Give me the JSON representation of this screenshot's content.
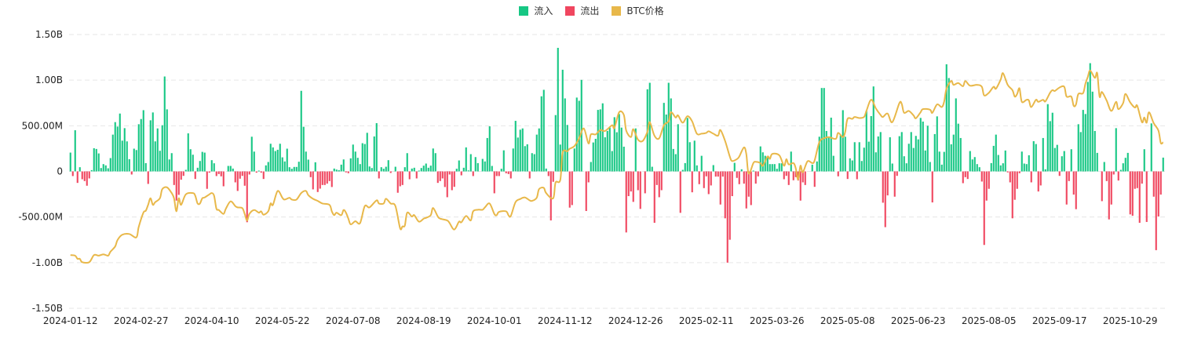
{
  "chart_data": {
    "type": "bar",
    "title": "",
    "xlabel": "",
    "ylabel": "",
    "legend_position": "top-center",
    "grid": true,
    "legend": [
      {
        "name": "流入",
        "color": "#16c784"
      },
      {
        "name": "流出",
        "color": "#f0465f"
      },
      {
        "name": "BTC价格",
        "color": "#e8b84a"
      }
    ],
    "y_axis": {
      "min": -1500,
      "max": 1500,
      "unit": "USD millions",
      "ticks": [
        1500,
        1000,
        500,
        0,
        -500,
        -1000,
        -1500
      ],
      "tick_labels": [
        "1.50B",
        "1.00B",
        "500.00M",
        "0",
        "-500.00M",
        "-1.00B",
        "-1.50B"
      ]
    },
    "price_axis": {
      "min": 24600,
      "max": 137100,
      "unit": "USD",
      "visible": false
    },
    "x_axis": {
      "tick_index": [
        0,
        30,
        60,
        90,
        120,
        150,
        180,
        210,
        240,
        270,
        300,
        330,
        360,
        390,
        420,
        450
      ],
      "tick_labels": [
        "2024-01-12",
        "2024-02-27",
        "2024-04-10",
        "2024-05-22",
        "2024-07-08",
        "2024-08-19",
        "2024-10-01",
        "2024-11-12",
        "2024-12-26",
        "2025-02-11",
        "2025-03-26",
        "2025-05-08",
        "2025-06-23",
        "2025-08-05",
        "2025-09-17",
        "2025-10-29"
      ]
    },
    "flows_musd": [
      206,
      -51,
      451,
      -126,
      46,
      -86,
      -106,
      -157,
      -77,
      14,
      254,
      246,
      197,
      37,
      80,
      66,
      34,
      146,
      403,
      540,
      491,
      634,
      337,
      474,
      329,
      134,
      -34,
      249,
      234,
      517,
      574,
      671,
      91,
      -137,
      560,
      646,
      329,
      471,
      226,
      506,
      1040,
      680,
      131,
      200,
      -149,
      -320,
      -257,
      -91,
      -49,
      17,
      417,
      243,
      183,
      -83,
      40,
      114,
      214,
      206,
      -191,
      -14,
      123,
      89,
      -51,
      -29,
      -54,
      -163,
      0,
      60,
      60,
      31,
      -120,
      -214,
      -80,
      -49,
      -157,
      -557,
      -34,
      380,
      217,
      -14,
      9,
      -14,
      -83,
      66,
      103,
      303,
      263,
      223,
      237,
      303,
      154,
      109,
      249,
      46,
      29,
      49,
      49,
      106,
      883,
      489,
      217,
      129,
      -63,
      -197,
      100,
      -226,
      -189,
      -149,
      -149,
      -134,
      -106,
      -171,
      31,
      20,
      14,
      74,
      131,
      -11,
      -20,
      143,
      294,
      217,
      149,
      80,
      309,
      300,
      423,
      54,
      37,
      383,
      529,
      -77,
      46,
      29,
      51,
      123,
      -17,
      0,
      51,
      -234,
      -163,
      -149,
      46,
      200,
      -86,
      31,
      40,
      -77,
      9,
      37,
      63,
      86,
      40,
      63,
      251,
      200,
      -126,
      -106,
      -77,
      -171,
      -283,
      -34,
      -206,
      -169,
      29,
      120,
      -43,
      40,
      263,
      11,
      189,
      -51,
      157,
      91,
      0,
      137,
      109,
      366,
      494,
      60,
      -240,
      -51,
      -51,
      29,
      231,
      -20,
      -29,
      -77,
      251,
      554,
      371,
      457,
      471,
      277,
      297,
      -77,
      200,
      189,
      403,
      471,
      823,
      894,
      31,
      -51,
      -537,
      -114,
      617,
      1354,
      294,
      1114,
      800,
      509,
      -397,
      -369,
      251,
      809,
      774,
      1003,
      0,
      -434,
      -120,
      103,
      317,
      357,
      674,
      680,
      746,
      374,
      443,
      480,
      223,
      594,
      429,
      629,
      480,
      271,
      -669,
      -271,
      -220,
      -334,
      471,
      -206,
      -411,
      0,
      -240,
      900,
      971,
      51,
      -563,
      -149,
      -283,
      -206,
      751,
      623,
      971,
      800,
      246,
      189,
      517,
      -454,
      17,
      91,
      586,
      320,
      -229,
      337,
      66,
      -140,
      171,
      -183,
      -54,
      -249,
      -154,
      69,
      -57,
      -57,
      -363,
      -57,
      -514,
      -1000,
      -749,
      -271,
      94,
      -71,
      -140,
      23,
      -134,
      -406,
      -277,
      -369,
      9,
      -134,
      -54,
      274,
      209,
      171,
      166,
      80,
      80,
      80,
      29,
      89,
      89,
      -86,
      -49,
      -149,
      217,
      -97,
      -63,
      -100,
      -320,
      -120,
      -149,
      0,
      0,
      74,
      -169,
      109,
      380,
      914,
      914,
      443,
      380,
      589,
      171,
      0,
      -54,
      394,
      671,
      380,
      -83,
      143,
      120,
      320,
      -86,
      320,
      114,
      260,
      666,
      326,
      606,
      931,
      209,
      383,
      431,
      -343,
      -611,
      -263,
      374,
      86,
      -277,
      -49,
      386,
      431,
      166,
      89,
      303,
      431,
      257,
      389,
      351,
      586,
      546,
      229,
      500,
      103,
      -340,
      409,
      603,
      217,
      74,
      214,
      1174,
      1023,
      297,
      403,
      800,
      523,
      366,
      -129,
      -63,
      -83,
      223,
      131,
      157,
      80,
      46,
      -111,
      -806,
      -320,
      -191,
      91,
      280,
      403,
      180,
      66,
      89,
      229,
      -11,
      -120,
      -514,
      -311,
      -191,
      -20,
      217,
      86,
      80,
      177,
      -120,
      331,
      300,
      -220,
      -154,
      366,
      23,
      737,
      551,
      643,
      257,
      291,
      -49,
      166,
      223,
      -363,
      -106,
      243,
      -254,
      -414,
      517,
      431,
      674,
      629,
      980,
      1186,
      874,
      443,
      203,
      0,
      -326,
      103,
      -106,
      -526,
      -363,
      -34,
      474,
      -100,
      17,
      89,
      149,
      203,
      -471,
      -486,
      -191,
      -183,
      -563,
      -134,
      243,
      -554,
      0,
      526,
      -277,
      -863,
      -494,
      -254,
      151
    ],
    "btc_price_usd": [
      [
        0,
        46460
      ],
      [
        2,
        46240
      ],
      [
        3,
        44950
      ],
      [
        4,
        44950
      ],
      [
        5,
        43570
      ],
      [
        8,
        43570
      ],
      [
        10,
        46460
      ],
      [
        12,
        46240
      ],
      [
        14,
        46780
      ],
      [
        16,
        46240
      ],
      [
        17,
        47850
      ],
      [
        19,
        50000
      ],
      [
        20,
        52660
      ],
      [
        22,
        54810
      ],
      [
        25,
        55130
      ],
      [
        28,
        53740
      ],
      [
        29,
        58030
      ],
      [
        31,
        63920
      ],
      [
        32,
        64680
      ],
      [
        33,
        67130
      ],
      [
        34,
        69810
      ],
      [
        35,
        67130
      ],
      [
        36,
        68200
      ],
      [
        38,
        69810
      ],
      [
        39,
        73550
      ],
      [
        41,
        74300
      ],
      [
        43,
        71940
      ],
      [
        44,
        69810
      ],
      [
        45,
        64450
      ],
      [
        46,
        69810
      ],
      [
        47,
        67130
      ],
      [
        49,
        71400
      ],
      [
        52,
        71940
      ],
      [
        53,
        70880
      ],
      [
        54,
        67670
      ],
      [
        55,
        67670
      ],
      [
        56,
        69810
      ],
      [
        57,
        70140
      ],
      [
        59,
        71420
      ],
      [
        60,
        71940
      ],
      [
        61,
        70880
      ],
      [
        62,
        65520
      ],
      [
        63,
        65000
      ],
      [
        65,
        63390
      ],
      [
        66,
        65520
      ],
      [
        68,
        68530
      ],
      [
        70,
        66600
      ],
      [
        71,
        66060
      ],
      [
        73,
        65740
      ],
      [
        74,
        63390
      ],
      [
        75,
        60700
      ],
      [
        76,
        63390
      ],
      [
        78,
        65000
      ],
      [
        80,
        63910
      ],
      [
        81,
        64450
      ],
      [
        82,
        63070
      ],
      [
        84,
        64450
      ],
      [
        85,
        67670
      ],
      [
        86,
        67130
      ],
      [
        88,
        72810
      ],
      [
        90,
        70010
      ],
      [
        91,
        69270
      ],
      [
        93,
        70010
      ],
      [
        94,
        69270
      ],
      [
        96,
        69270
      ],
      [
        98,
        71940
      ],
      [
        100,
        72810
      ],
      [
        101,
        71100
      ],
      [
        103,
        69590
      ],
      [
        105,
        68730
      ],
      [
        107,
        67670
      ],
      [
        110,
        67130
      ],
      [
        111,
        64450
      ],
      [
        112,
        62850
      ],
      [
        113,
        63910
      ],
      [
        115,
        62850
      ],
      [
        116,
        65000
      ],
      [
        117,
        63910
      ],
      [
        118,
        61500
      ],
      [
        119,
        59090
      ],
      [
        121,
        60370
      ],
      [
        123,
        59630
      ],
      [
        125,
        66600
      ],
      [
        127,
        66060
      ],
      [
        130,
        68950
      ],
      [
        131,
        67670
      ],
      [
        133,
        67670
      ],
      [
        134,
        69590
      ],
      [
        136,
        67670
      ],
      [
        138,
        66600
      ],
      [
        140,
        57480
      ],
      [
        141,
        58250
      ],
      [
        142,
        58570
      ],
      [
        143,
        63910
      ],
      [
        145,
        62300
      ],
      [
        146,
        62850
      ],
      [
        148,
        60180
      ],
      [
        150,
        61460
      ],
      [
        151,
        61780
      ],
      [
        153,
        62850
      ],
      [
        154,
        65840
      ],
      [
        156,
        62300
      ],
      [
        157,
        61460
      ],
      [
        160,
        60700
      ],
      [
        161,
        59630
      ],
      [
        163,
        56970
      ],
      [
        165,
        60180
      ],
      [
        166,
        59920
      ],
      [
        168,
        62530
      ],
      [
        170,
        60700
      ],
      [
        171,
        64450
      ],
      [
        173,
        65100
      ],
      [
        175,
        65100
      ],
      [
        176,
        66060
      ],
      [
        178,
        67670
      ],
      [
        180,
        63390
      ],
      [
        181,
        62850
      ],
      [
        182,
        64230
      ],
      [
        185,
        64450
      ],
      [
        186,
        62850
      ],
      [
        187,
        62530
      ],
      [
        189,
        68210
      ],
      [
        191,
        69490
      ],
      [
        193,
        70140
      ],
      [
        195,
        68950
      ],
      [
        196,
        68730
      ],
      [
        198,
        70010
      ],
      [
        199,
        73550
      ],
      [
        201,
        74090
      ],
      [
        202,
        71940
      ],
      [
        205,
        69810
      ],
      [
        206,
        76250
      ],
      [
        208,
        77300
      ],
      [
        209,
        88550
      ],
      [
        211,
        89090
      ],
      [
        212,
        90160
      ],
      [
        214,
        91230
      ],
      [
        216,
        94440
      ],
      [
        218,
        98510
      ],
      [
        220,
        92310
      ],
      [
        221,
        96040
      ],
      [
        223,
        96040
      ],
      [
        225,
        97870
      ],
      [
        227,
        97460
      ],
      [
        230,
        99800
      ],
      [
        231,
        98740
      ],
      [
        233,
        105170
      ],
      [
        235,
        104060
      ],
      [
        236,
        97650
      ],
      [
        238,
        94980
      ],
      [
        239,
        98190
      ],
      [
        241,
        93920
      ],
      [
        243,
        93370
      ],
      [
        245,
        97130
      ],
      [
        246,
        101080
      ],
      [
        248,
        95520
      ],
      [
        250,
        94440
      ],
      [
        252,
        99800
      ],
      [
        254,
        101400
      ],
      [
        255,
        105170
      ],
      [
        257,
        103010
      ],
      [
        258,
        103870
      ],
      [
        260,
        100860
      ],
      [
        262,
        103550
      ],
      [
        264,
        101400
      ],
      [
        266,
        96360
      ],
      [
        268,
        96360
      ],
      [
        270,
        96690
      ],
      [
        271,
        97320
      ],
      [
        273,
        96360
      ],
      [
        275,
        95520
      ],
      [
        276,
        97870
      ],
      [
        278,
        93370
      ],
      [
        280,
        86940
      ],
      [
        281,
        85110
      ],
      [
        283,
        85880
      ],
      [
        284,
        86940
      ],
      [
        286,
        90700
      ],
      [
        287,
        88000
      ],
      [
        288,
        79970
      ],
      [
        290,
        84270
      ],
      [
        291,
        84790
      ],
      [
        293,
        84270
      ],
      [
        294,
        83180
      ],
      [
        296,
        86940
      ],
      [
        297,
        86000
      ],
      [
        298,
        88000
      ],
      [
        301,
        87490
      ],
      [
        303,
        83180
      ],
      [
        304,
        85880
      ],
      [
        305,
        83730
      ],
      [
        307,
        84270
      ],
      [
        308,
        82120
      ],
      [
        309,
        77530
      ],
      [
        310,
        83180
      ],
      [
        311,
        80520
      ],
      [
        313,
        85020
      ],
      [
        315,
        84270
      ],
      [
        316,
        85340
      ],
      [
        318,
        92830
      ],
      [
        320,
        94440
      ],
      [
        322,
        94980
      ],
      [
        325,
        94240
      ],
      [
        326,
        96690
      ],
      [
        328,
        94980
      ],
      [
        329,
        97130
      ],
      [
        330,
        102460
      ],
      [
        332,
        102460
      ],
      [
        333,
        103230
      ],
      [
        335,
        102780
      ],
      [
        337,
        103230
      ],
      [
        338,
        105690
      ],
      [
        340,
        110290
      ],
      [
        342,
        106760
      ],
      [
        344,
        104060
      ],
      [
        345,
        103230
      ],
      [
        347,
        104620
      ],
      [
        349,
        101080
      ],
      [
        352,
        108910
      ],
      [
        353,
        108590
      ],
      [
        354,
        104940
      ],
      [
        356,
        105690
      ],
      [
        358,
        103870
      ],
      [
        359,
        102680
      ],
      [
        361,
        105170
      ],
      [
        362,
        106450
      ],
      [
        365,
        106230
      ],
      [
        366,
        104940
      ],
      [
        368,
        108370
      ],
      [
        370,
        107290
      ],
      [
        371,
        109440
      ],
      [
        372,
        114810
      ],
      [
        374,
        118020
      ],
      [
        375,
        116420
      ],
      [
        377,
        117150
      ],
      [
        379,
        115860
      ],
      [
        380,
        118020
      ],
      [
        382,
        116090
      ],
      [
        385,
        116420
      ],
      [
        387,
        115640
      ],
      [
        388,
        112100
      ],
      [
        390,
        113180
      ],
      [
        392,
        115640
      ],
      [
        393,
        114810
      ],
      [
        395,
        118530
      ],
      [
        396,
        121220
      ],
      [
        398,
        116420
      ],
      [
        400,
        114260
      ],
      [
        401,
        111590
      ],
      [
        402,
        112650
      ],
      [
        403,
        114990
      ],
      [
        404,
        109440
      ],
      [
        406,
        110290
      ],
      [
        407,
        109980
      ],
      [
        408,
        107290
      ],
      [
        410,
        110290
      ],
      [
        411,
        109440
      ],
      [
        413,
        110290
      ],
      [
        414,
        109650
      ],
      [
        416,
        113180
      ],
      [
        417,
        114260
      ],
      [
        418,
        113930
      ],
      [
        420,
        115320
      ],
      [
        422,
        115640
      ],
      [
        423,
        111590
      ],
      [
        425,
        111590
      ],
      [
        426,
        107830
      ],
      [
        427,
        108370
      ],
      [
        428,
        112650
      ],
      [
        430,
        113000
      ],
      [
        431,
        116930
      ],
      [
        432,
        119620
      ],
      [
        433,
        122300
      ],
      [
        435,
        119300
      ],
      [
        436,
        121220
      ],
      [
        437,
        111590
      ],
      [
        438,
        113520
      ],
      [
        440,
        109980
      ],
      [
        442,
        105690
      ],
      [
        444,
        109440
      ],
      [
        445,
        106450
      ],
      [
        447,
        108910
      ],
      [
        448,
        112650
      ],
      [
        450,
        109220
      ],
      [
        452,
        107080
      ],
      [
        453,
        107830
      ],
      [
        455,
        101080
      ],
      [
        456,
        103010
      ],
      [
        457,
        100860
      ],
      [
        458,
        105170
      ],
      [
        460,
        100660
      ],
      [
        462,
        97650
      ],
      [
        463,
        92510
      ],
      [
        464,
        92830
      ]
    ]
  }
}
